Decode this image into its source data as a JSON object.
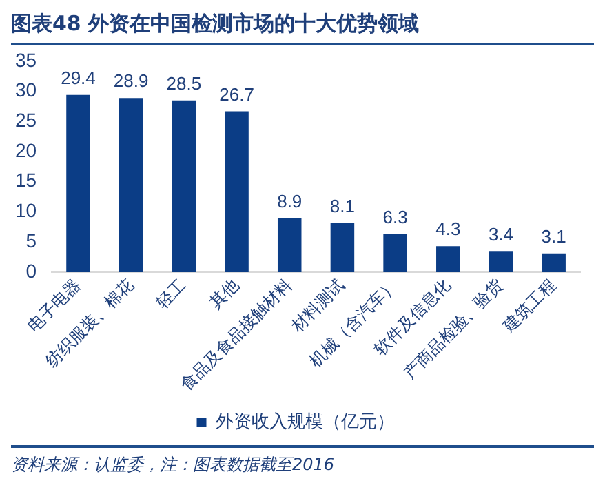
{
  "chart_data": {
    "type": "bar",
    "title": "图表48  外资在中国检测市场的十大优势领域",
    "categories": [
      "电子电器",
      "纺织服装、棉花",
      "轻工",
      "其他",
      "食品及食品接触材料",
      "材料测试",
      "机械（含汽车）",
      "软件及信息化",
      "产商品检验、验货",
      "建筑工程"
    ],
    "series": [
      {
        "name": "外资收入规模（亿元）",
        "color": "#0b3d86",
        "values": [
          29.4,
          28.9,
          28.5,
          26.7,
          8.9,
          8.1,
          6.3,
          4.3,
          3.4,
          3.1
        ]
      }
    ],
    "ylim": [
      0,
      35
    ],
    "yticks": [
      0,
      5,
      10,
      15,
      20,
      25,
      30,
      35
    ],
    "grid": false,
    "legend": "bottom",
    "data_labels": true,
    "annotations": [
      "资料来源：认监委，注：图表数据截至2016"
    ]
  }
}
